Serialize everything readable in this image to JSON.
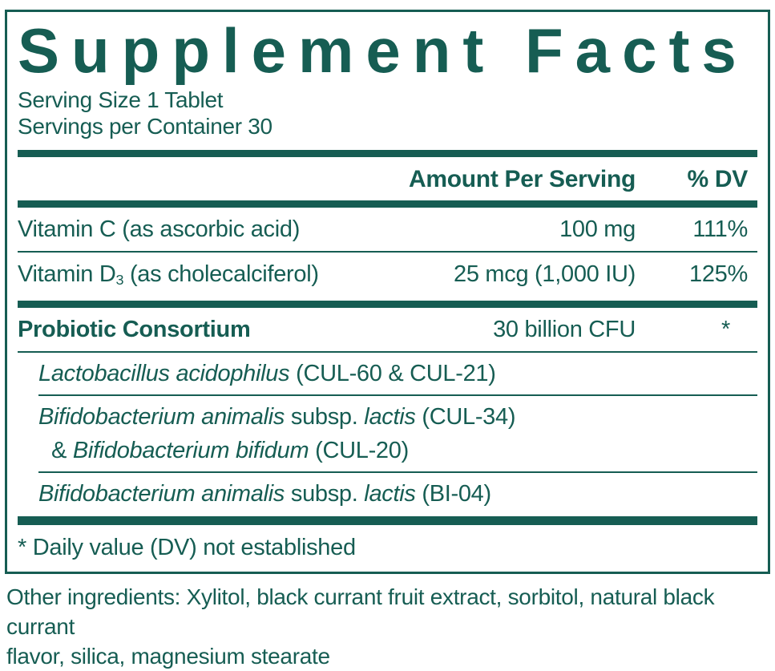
{
  "colors": {
    "teal": "#165D53"
  },
  "title": "Supplement Facts",
  "serving": {
    "size_line": "Serving Size 1 Tablet",
    "container_line": "Servings per Container 30"
  },
  "table": {
    "headers": {
      "amount": "Amount Per Serving",
      "dv": "% DV"
    },
    "rows": [
      {
        "name": "Vitamin C (as ascorbic acid)",
        "amount": "100 mg",
        "dv": "111%"
      },
      {
        "name_prefix": "Vitamin D",
        "name_sub": "3",
        "name_suffix": "(as cholecalciferol)",
        "amount": "25 mcg (1,000 IU)",
        "dv": "125%"
      }
    ],
    "probiotic": {
      "name": "Probiotic Consortium",
      "amount": "30 billion CFU",
      "dv": "*",
      "strains": {
        "s1": {
          "i1": "Lactobacillus acidophilus",
          "r1": "(CUL-60 & CUL-21)"
        },
        "s2_line1": {
          "i1": "Bifidobacterium animalis",
          "r1": "subsp.",
          "i2": "lactis",
          "r2": "(CUL-34)"
        },
        "s2_line2": {
          "r0": "&",
          "i1": "Bifidobacterium bifidum",
          "r1": "(CUL-20)"
        },
        "s3": {
          "i1": "Bifidobacterium animalis",
          "r1": "subsp.",
          "i2": "lactis",
          "r2": "(BI-04)"
        }
      }
    },
    "footnote": "* Daily value (DV) not established"
  },
  "other_ingredients": "Other ingredients: Xylitol, black currant fruit extract, sorbitol, natural black currant\nflavor, silica, magnesium stearate"
}
